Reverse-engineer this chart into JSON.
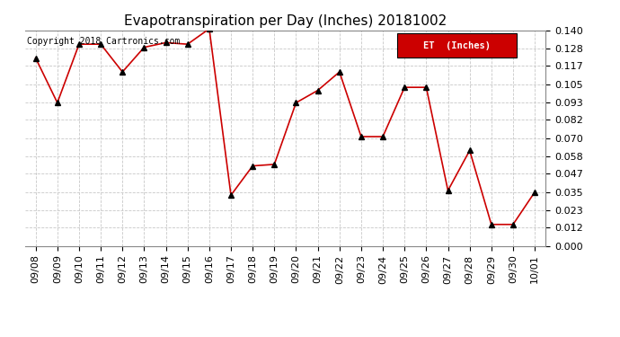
{
  "title": "Evapotranspiration per Day (Inches) 20181002",
  "copyright": "Copyright 2018 Cartronics.com",
  "legend_label": "ET  (Inches)",
  "dates": [
    "09/08",
    "09/09",
    "09/10",
    "09/11",
    "09/12",
    "09/13",
    "09/14",
    "09/15",
    "09/16",
    "09/17",
    "09/18",
    "09/19",
    "09/20",
    "09/21",
    "09/22",
    "09/23",
    "09/24",
    "09/25",
    "09/26",
    "09/27",
    "09/28",
    "09/29",
    "09/30",
    "10/01"
  ],
  "values": [
    0.122,
    0.093,
    0.131,
    0.131,
    0.113,
    0.129,
    0.132,
    0.131,
    0.141,
    0.033,
    0.052,
    0.053,
    0.093,
    0.101,
    0.113,
    0.071,
    0.071,
    0.103,
    0.103,
    0.036,
    0.062,
    0.014,
    0.014,
    0.035
  ],
  "line_color": "#cc0000",
  "marker": "^",
  "marker_color": "#000000",
  "marker_size": 4,
  "ylim": [
    0.0,
    0.14
  ],
  "yticks": [
    0.0,
    0.012,
    0.023,
    0.035,
    0.047,
    0.058,
    0.07,
    0.082,
    0.093,
    0.105,
    0.117,
    0.128,
    0.14
  ],
  "grid_color": "#c8c8c8",
  "background_color": "#ffffff",
  "legend_bg": "#cc0000",
  "legend_text_color": "#ffffff",
  "title_fontsize": 11,
  "copyright_fontsize": 7,
  "tick_fontsize": 8,
  "border_color": "#888888"
}
